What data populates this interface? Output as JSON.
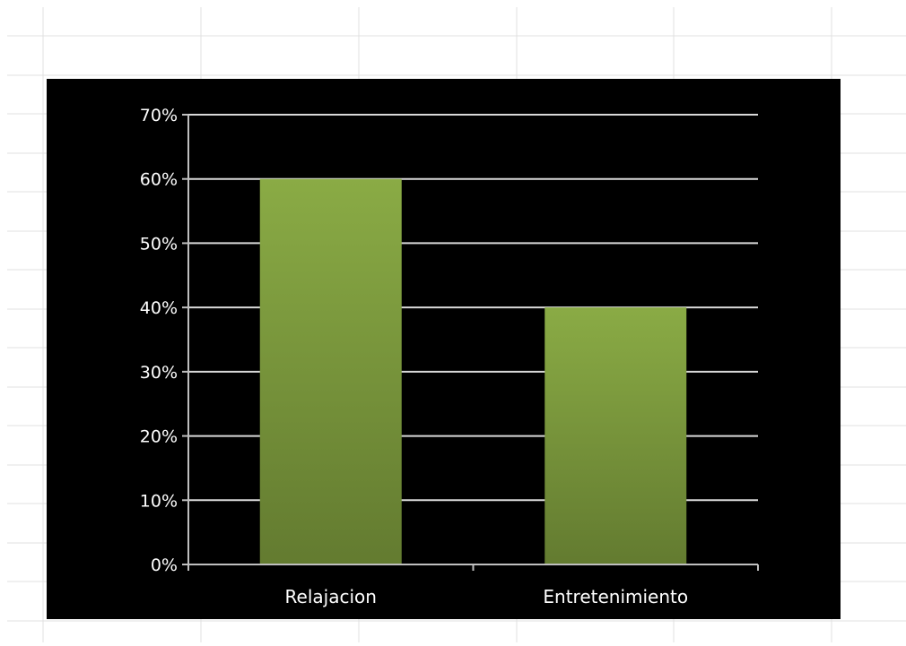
{
  "chart_data": {
    "type": "bar",
    "categories": [
      "Relajacion",
      "Entretenimiento"
    ],
    "values": [
      0.6,
      0.4
    ],
    "ylim": [
      0,
      0.7
    ],
    "yticks": [
      0,
      0.1,
      0.2,
      0.3,
      0.4,
      0.5,
      0.6,
      0.7
    ],
    "ytick_labels": [
      "0%",
      "10%",
      "20%",
      "30%",
      "40%",
      "50%",
      "60%",
      "70%"
    ],
    "title": "",
    "xlabel": "",
    "ylabel": "",
    "grid": true,
    "legend": "none",
    "colors": {
      "background": "#000000",
      "bar_top": "#8aab45",
      "bar_bottom": "#637b30",
      "gridline": "#d9d9d9",
      "axis": "#bfbfbf",
      "text": "#ffffff",
      "sheet_grid": "#e0e0e0"
    }
  }
}
